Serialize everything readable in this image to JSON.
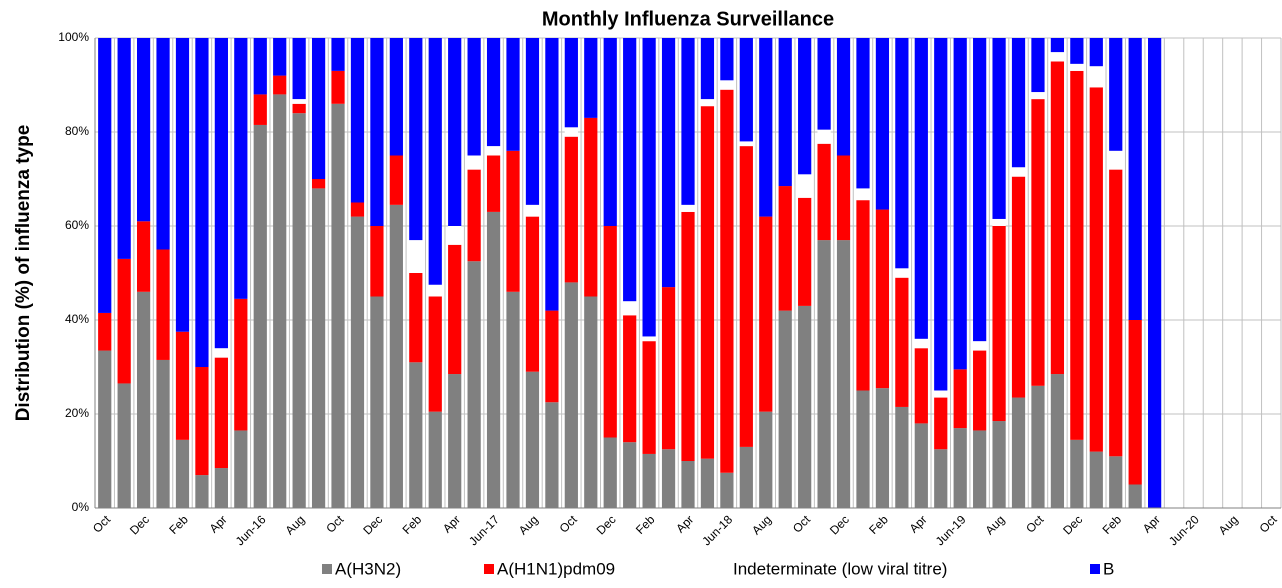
{
  "chart_data": {
    "type": "stacked_bar",
    "title": "Monthly Influenza Surveillance",
    "y_label": "Distribution (%) of influenza  type",
    "categories": [
      "Oct",
      null,
      "Dec",
      null,
      "Feb",
      null,
      "Apr",
      null,
      "Jun-16",
      null,
      "Aug",
      null,
      "Oct",
      null,
      "Dec",
      null,
      "Feb",
      null,
      "Apr",
      null,
      "Jun-17",
      null,
      "Aug",
      null,
      "Oct",
      null,
      "Dec",
      null,
      "Feb",
      null,
      "Apr",
      null,
      "Jun-18",
      null,
      "Aug",
      null,
      "Oct",
      null,
      "Dec",
      null,
      "Feb",
      null,
      "Apr",
      null,
      "Jun-19",
      null,
      "Aug",
      null,
      "Oct",
      null,
      "Dec",
      null,
      "Feb",
      null,
      "Apr",
      null,
      "Jun-20",
      null,
      "Aug",
      null,
      "Oct"
    ],
    "series": [
      {
        "name": "A(H3N2)",
        "color": "#808080",
        "values": [
          33.5,
          26.5,
          46,
          31.5,
          14.5,
          7,
          8.5,
          16.5,
          81.5,
          88,
          84,
          68,
          86,
          62,
          45,
          64.5,
          31,
          20.5,
          28.5,
          52.5,
          63,
          46,
          29,
          22.5,
          48,
          45,
          15,
          14,
          11.5,
          12.5,
          10,
          10.5,
          7.5,
          13,
          20.5,
          42,
          43,
          57,
          57,
          25,
          25.5,
          21.5,
          18,
          12.5,
          17,
          16.5,
          18.5,
          23.5,
          26,
          28.5,
          14.5,
          12,
          11,
          5,
          0,
          null,
          null,
          null,
          null,
          null,
          null
        ]
      },
      {
        "name": "A(H1N1)pdm09",
        "color": "#ff0000",
        "values": [
          8,
          26.5,
          15,
          23.5,
          23,
          23,
          23.5,
          28,
          6.5,
          4,
          2,
          2,
          7,
          3,
          15,
          10.5,
          19,
          24.5,
          27.5,
          19.5,
          12,
          30,
          33,
          19.5,
          31,
          38,
          45,
          27,
          24,
          34.5,
          53,
          75,
          81.5,
          64,
          41.5,
          26.5,
          23,
          20.5,
          18,
          40.5,
          38,
          27.5,
          16,
          11,
          12.5,
          17,
          41.5,
          47,
          61,
          66.5,
          78.5,
          77.5,
          61,
          35,
          0,
          null,
          null,
          null,
          null,
          null,
          null
        ]
      },
      {
        "name": "Indeterminate (low viral titre)",
        "color": "#ffffff",
        "values": [
          0,
          0,
          0,
          0,
          0,
          0,
          2,
          0,
          0,
          0,
          1,
          0,
          0,
          0,
          0,
          0,
          7,
          2.5,
          4,
          3,
          2,
          0,
          2.5,
          0,
          2,
          0,
          0,
          3,
          1,
          0,
          1.5,
          1.5,
          2,
          1,
          0,
          0,
          5,
          3,
          0,
          2.5,
          0,
          2,
          2,
          1.5,
          0,
          2,
          1.5,
          2,
          1.5,
          2,
          1.5,
          4.5,
          4,
          0,
          0,
          null,
          null,
          null,
          null,
          null,
          null
        ]
      },
      {
        "name": "B",
        "color": "#0000ff",
        "values": [
          58.5,
          47,
          39,
          45,
          62.5,
          70,
          66,
          55.5,
          12,
          8,
          13,
          30,
          7,
          35,
          40,
          25,
          43,
          52.5,
          40,
          25,
          23,
          24,
          35.5,
          58,
          19,
          17,
          40,
          56,
          63.5,
          53,
          35.5,
          13,
          9,
          22,
          38,
          31.5,
          29,
          19.5,
          25,
          32,
          36.5,
          49,
          64,
          75,
          70.5,
          64.5,
          38.5,
          27.5,
          11.5,
          3,
          5.5,
          6,
          24,
          60,
          100,
          null,
          null,
          null,
          null,
          null,
          null
        ]
      }
    ],
    "ylim": [
      0,
      100
    ],
    "yticks": [
      {
        "value": 0,
        "label": "0%"
      },
      {
        "value": 20,
        "label": "20%"
      },
      {
        "value": 40,
        "label": "40%"
      },
      {
        "value": 60,
        "label": "60%"
      },
      {
        "value": 80,
        "label": "80%"
      },
      {
        "value": 100,
        "label": "100%"
      }
    ],
    "grid": true,
    "legend": "bottom"
  }
}
